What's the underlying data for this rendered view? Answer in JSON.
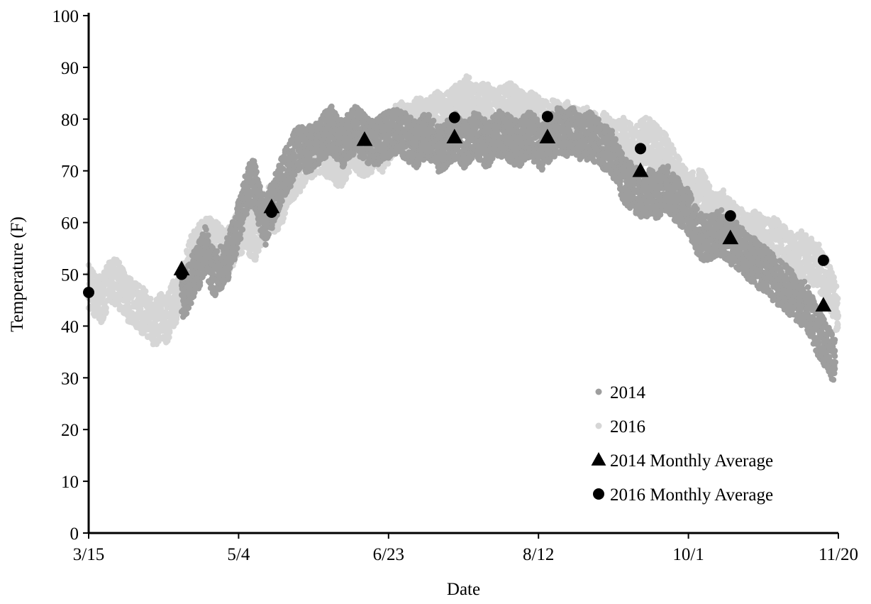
{
  "chart_data": {
    "type": "scatter",
    "xlabel": "Date",
    "ylabel": "Temperature (F)",
    "x_ticks": [
      "3/15",
      "5/4",
      "6/23",
      "8/12",
      "10/1",
      "11/20"
    ],
    "x_range": [
      "3/15",
      "11/20"
    ],
    "ylim": [
      0,
      100
    ],
    "y_ticks": [
      "0",
      "10",
      "20",
      "30",
      "40",
      "50",
      "60",
      "70",
      "80",
      "90",
      "100"
    ],
    "grid": false,
    "legend_position": "bottom-right",
    "series": [
      {
        "name": "2014",
        "marker": "circle-small",
        "color": "#9e9e9e",
        "points": [
          [
            "4/15",
            46
          ],
          [
            "4/17",
            47
          ],
          [
            "4/19",
            50
          ],
          [
            "4/21",
            52
          ],
          [
            "4/23",
            55
          ],
          [
            "4/25",
            51
          ],
          [
            "4/27",
            50
          ],
          [
            "4/29",
            52
          ],
          [
            "5/1",
            54
          ],
          [
            "5/3",
            58
          ],
          [
            "5/5",
            62
          ],
          [
            "5/7",
            67
          ],
          [
            "5/9",
            68
          ],
          [
            "5/11",
            63
          ],
          [
            "5/13",
            60
          ],
          [
            "5/15",
            63
          ],
          [
            "5/17",
            66
          ],
          [
            "5/19",
            69
          ],
          [
            "5/21",
            71
          ],
          [
            "5/23",
            74
          ],
          [
            "5/25",
            75
          ],
          [
            "5/27",
            74
          ],
          [
            "5/29",
            75
          ],
          [
            "5/31",
            76
          ],
          [
            "6/2",
            77
          ],
          [
            "6/4",
            78
          ],
          [
            "6/6",
            76
          ],
          [
            "6/8",
            75
          ],
          [
            "6/10",
            77
          ],
          [
            "6/12",
            78
          ],
          [
            "6/14",
            77
          ],
          [
            "6/16",
            76
          ],
          [
            "6/18",
            75
          ],
          [
            "6/20",
            76
          ],
          [
            "6/22",
            77
          ],
          [
            "6/24",
            77
          ],
          [
            "6/26",
            78
          ],
          [
            "6/28",
            77
          ],
          [
            "6/30",
            76
          ],
          [
            "7/2",
            75
          ],
          [
            "7/4",
            76
          ],
          [
            "7/6",
            77
          ],
          [
            "7/8",
            76
          ],
          [
            "7/10",
            74
          ],
          [
            "7/12",
            75
          ],
          [
            "7/14",
            76
          ],
          [
            "7/16",
            77
          ],
          [
            "7/18",
            75
          ],
          [
            "7/20",
            76
          ],
          [
            "7/22",
            77
          ],
          [
            "7/24",
            76
          ],
          [
            "7/26",
            75
          ],
          [
            "7/28",
            76
          ],
          [
            "7/30",
            77
          ],
          [
            "8/1",
            77
          ],
          [
            "8/3",
            76
          ],
          [
            "8/5",
            75
          ],
          [
            "8/7",
            76
          ],
          [
            "8/9",
            77
          ],
          [
            "8/11",
            76
          ],
          [
            "8/13",
            74
          ],
          [
            "8/15",
            76
          ],
          [
            "8/17",
            77
          ],
          [
            "8/19",
            78
          ],
          [
            "8/21",
            77
          ],
          [
            "8/23",
            78
          ],
          [
            "8/25",
            77
          ],
          [
            "8/27",
            76
          ],
          [
            "8/29",
            77
          ],
          [
            "8/31",
            76
          ],
          [
            "9/2",
            75
          ],
          [
            "9/4",
            74
          ],
          [
            "9/6",
            73
          ],
          [
            "9/8",
            70
          ],
          [
            "9/10",
            68
          ],
          [
            "9/12",
            67
          ],
          [
            "9/14",
            66
          ],
          [
            "9/16",
            65
          ],
          [
            "9/18",
            66
          ],
          [
            "9/20",
            65
          ],
          [
            "9/22",
            66
          ],
          [
            "9/24",
            67
          ],
          [
            "9/26",
            65
          ],
          [
            "9/28",
            64
          ],
          [
            "9/30",
            63
          ],
          [
            "10/2",
            61
          ],
          [
            "10/4",
            58
          ],
          [
            "10/6",
            57
          ],
          [
            "10/8",
            57
          ],
          [
            "10/10",
            58
          ],
          [
            "10/12",
            58
          ],
          [
            "10/14",
            57
          ],
          [
            "10/16",
            56
          ],
          [
            "10/18",
            55
          ],
          [
            "10/20",
            54
          ],
          [
            "10/22",
            53
          ],
          [
            "10/24",
            52
          ],
          [
            "10/26",
            51
          ],
          [
            "10/28",
            50
          ],
          [
            "10/30",
            49
          ],
          [
            "11/1",
            48
          ],
          [
            "11/3",
            47
          ],
          [
            "11/5",
            46
          ],
          [
            "11/7",
            45
          ],
          [
            "11/9",
            44
          ],
          [
            "11/11",
            42
          ],
          [
            "11/13",
            39
          ],
          [
            "11/15",
            37
          ],
          [
            "11/17",
            35
          ],
          [
            "11/19",
            33
          ]
        ]
      },
      {
        "name": "2016",
        "marker": "circle-small",
        "color": "#d6d6d6",
        "points": [
          [
            "3/15",
            48
          ],
          [
            "3/17",
            46
          ],
          [
            "3/19",
            45
          ],
          [
            "3/21",
            47
          ],
          [
            "3/23",
            49
          ],
          [
            "3/25",
            48
          ],
          [
            "3/27",
            46
          ],
          [
            "3/29",
            45
          ],
          [
            "3/31",
            44
          ],
          [
            "4/2",
            43
          ],
          [
            "4/4",
            42
          ],
          [
            "4/6",
            40
          ],
          [
            "4/8",
            42
          ],
          [
            "4/10",
            41
          ],
          [
            "4/12",
            44
          ],
          [
            "4/14",
            46
          ],
          [
            "4/16",
            49
          ],
          [
            "4/18",
            53
          ],
          [
            "4/20",
            55
          ],
          [
            "4/22",
            56
          ],
          [
            "4/24",
            57
          ],
          [
            "4/26",
            56
          ],
          [
            "4/28",
            55
          ],
          [
            "4/30",
            54
          ],
          [
            "5/2",
            56
          ],
          [
            "5/4",
            58
          ],
          [
            "5/6",
            59
          ],
          [
            "5/8",
            58
          ],
          [
            "5/10",
            57
          ],
          [
            "5/12",
            61
          ],
          [
            "5/14",
            63
          ],
          [
            "5/16",
            62
          ],
          [
            "5/18",
            64
          ],
          [
            "5/20",
            66
          ],
          [
            "5/22",
            68
          ],
          [
            "5/24",
            70
          ],
          [
            "5/26",
            72
          ],
          [
            "5/28",
            73
          ],
          [
            "5/30",
            74
          ],
          [
            "6/1",
            74
          ],
          [
            "6/3",
            73
          ],
          [
            "6/5",
            72
          ],
          [
            "6/7",
            71
          ],
          [
            "6/9",
            73
          ],
          [
            "6/11",
            75
          ],
          [
            "6/13",
            74
          ],
          [
            "6/15",
            73
          ],
          [
            "6/17",
            74
          ],
          [
            "6/19",
            75
          ],
          [
            "6/21",
            74
          ],
          [
            "6/23",
            76
          ],
          [
            "6/25",
            78
          ],
          [
            "6/27",
            79
          ],
          [
            "6/29",
            78
          ],
          [
            "7/1",
            79
          ],
          [
            "7/3",
            80
          ],
          [
            "7/5",
            79
          ],
          [
            "7/7",
            80
          ],
          [
            "7/9",
            81
          ],
          [
            "7/11",
            80
          ],
          [
            "7/13",
            81
          ],
          [
            "7/15",
            82
          ],
          [
            "7/17",
            83
          ],
          [
            "7/19",
            84
          ],
          [
            "7/21",
            83
          ],
          [
            "7/23",
            82
          ],
          [
            "7/25",
            83
          ],
          [
            "7/27",
            82
          ],
          [
            "7/29",
            81
          ],
          [
            "7/31",
            82
          ],
          [
            "8/2",
            83
          ],
          [
            "8/4",
            82
          ],
          [
            "8/6",
            81
          ],
          [
            "8/8",
            80
          ],
          [
            "8/10",
            81
          ],
          [
            "8/12",
            80
          ],
          [
            "8/14",
            79
          ],
          [
            "8/16",
            80
          ],
          [
            "8/18",
            79
          ],
          [
            "8/20",
            78
          ],
          [
            "8/22",
            79
          ],
          [
            "8/24",
            78
          ],
          [
            "8/26",
            77
          ],
          [
            "8/28",
            78
          ],
          [
            "8/30",
            77
          ],
          [
            "9/1",
            76
          ],
          [
            "9/3",
            77
          ],
          [
            "9/5",
            76
          ],
          [
            "9/7",
            75
          ],
          [
            "9/9",
            76
          ],
          [
            "9/11",
            75
          ],
          [
            "9/13",
            74
          ],
          [
            "9/15",
            75
          ],
          [
            "9/17",
            76
          ],
          [
            "9/19",
            75
          ],
          [
            "9/21",
            74
          ],
          [
            "9/23",
            73
          ],
          [
            "9/25",
            71
          ],
          [
            "9/27",
            69
          ],
          [
            "9/29",
            67
          ],
          [
            "10/1",
            66
          ],
          [
            "10/3",
            65
          ],
          [
            "10/5",
            66
          ],
          [
            "10/7",
            64
          ],
          [
            "10/9",
            62
          ],
          [
            "10/11",
            61
          ],
          [
            "10/13",
            62
          ],
          [
            "10/15",
            60
          ],
          [
            "10/17",
            59
          ],
          [
            "10/19",
            58
          ],
          [
            "10/21",
            57
          ],
          [
            "10/23",
            58
          ],
          [
            "10/25",
            57
          ],
          [
            "10/27",
            56
          ],
          [
            "10/29",
            57
          ],
          [
            "10/31",
            56
          ],
          [
            "11/2",
            55
          ],
          [
            "11/4",
            54
          ],
          [
            "11/6",
            53
          ],
          [
            "11/8",
            54
          ],
          [
            "11/10",
            53
          ],
          [
            "11/12",
            52
          ],
          [
            "11/14",
            51
          ],
          [
            "11/16",
            49
          ],
          [
            "11/18",
            46
          ],
          [
            "11/20",
            42
          ]
        ]
      },
      {
        "name": "2014 Monthly Average",
        "marker": "triangle",
        "color": "#000000",
        "points": [
          [
            "4/15",
            51
          ],
          [
            "5/15",
            63
          ],
          [
            "6/15",
            76
          ],
          [
            "7/15",
            76.5
          ],
          [
            "8/15",
            76.5
          ],
          [
            "9/15",
            70
          ],
          [
            "10/15",
            57
          ],
          [
            "11/15",
            44
          ]
        ]
      },
      {
        "name": "2016 Monthly Average",
        "marker": "circle",
        "color": "#000000",
        "points": [
          [
            "3/15",
            46.5
          ],
          [
            "4/15",
            50
          ],
          [
            "5/15",
            62
          ],
          [
            "7/15",
            80.3
          ],
          [
            "8/15",
            80.5
          ],
          [
            "9/15",
            74.3
          ],
          [
            "10/15",
            61.3
          ],
          [
            "11/15",
            52.7
          ]
        ]
      }
    ]
  }
}
